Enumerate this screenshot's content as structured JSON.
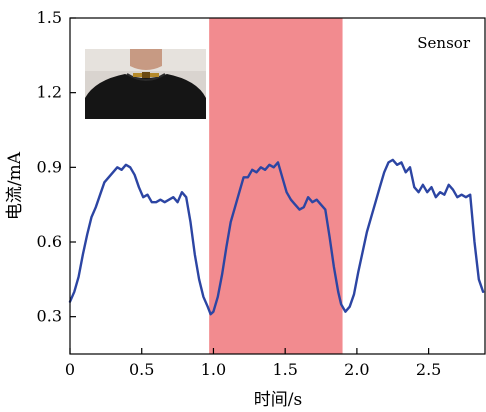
{
  "chart_data": {
    "type": "line",
    "xlabel": "时间/s",
    "ylabel": "电流/mA",
    "xlim": [
      0,
      2.9
    ],
    "ylim": [
      0.15,
      1.5
    ],
    "xticks": [
      0,
      0.5,
      1.0,
      1.5,
      2.0,
      2.5
    ],
    "xtick_labels": [
      "0",
      "0.5",
      "1.0",
      "1.5",
      "2.0",
      "2.5"
    ],
    "yticks": [
      0.3,
      0.6,
      0.9,
      1.2,
      1.5
    ],
    "ytick_labels": [
      "0.3",
      "0.6",
      "0.9",
      "1.2",
      "1.5"
    ],
    "legend_text": "Sensor",
    "legend_position": "top-right",
    "grid": false,
    "inset_photo": "neck-wearing-sensor-photo",
    "highlight_region": {
      "x0": 0.97,
      "x1": 1.9,
      "color": "#f28b8f"
    },
    "series": [
      {
        "color": "#2c45a3",
        "x": [
          0.0,
          0.03,
          0.06,
          0.09,
          0.12,
          0.15,
          0.18,
          0.21,
          0.24,
          0.27,
          0.3,
          0.33,
          0.36,
          0.39,
          0.42,
          0.45,
          0.48,
          0.51,
          0.54,
          0.57,
          0.6,
          0.63,
          0.66,
          0.69,
          0.72,
          0.75,
          0.78,
          0.81,
          0.84,
          0.87,
          0.9,
          0.93,
          0.96,
          0.98,
          1.0,
          1.03,
          1.06,
          1.09,
          1.12,
          1.15,
          1.18,
          1.21,
          1.24,
          1.27,
          1.3,
          1.33,
          1.36,
          1.39,
          1.42,
          1.45,
          1.48,
          1.51,
          1.54,
          1.57,
          1.6,
          1.63,
          1.66,
          1.69,
          1.72,
          1.75,
          1.78,
          1.81,
          1.84,
          1.87,
          1.89,
          1.92,
          1.95,
          1.98,
          2.01,
          2.04,
          2.07,
          2.1,
          2.13,
          2.16,
          2.19,
          2.22,
          2.25,
          2.28,
          2.31,
          2.34,
          2.37,
          2.4,
          2.43,
          2.46,
          2.49,
          2.52,
          2.55,
          2.58,
          2.61,
          2.64,
          2.67,
          2.7,
          2.73,
          2.76,
          2.79,
          2.82,
          2.85,
          2.88
        ],
        "y": [
          0.36,
          0.4,
          0.46,
          0.55,
          0.63,
          0.7,
          0.74,
          0.79,
          0.84,
          0.86,
          0.88,
          0.9,
          0.89,
          0.91,
          0.9,
          0.87,
          0.82,
          0.78,
          0.79,
          0.76,
          0.76,
          0.77,
          0.76,
          0.77,
          0.78,
          0.76,
          0.8,
          0.78,
          0.68,
          0.55,
          0.45,
          0.38,
          0.34,
          0.31,
          0.32,
          0.38,
          0.47,
          0.58,
          0.68,
          0.74,
          0.8,
          0.86,
          0.86,
          0.89,
          0.88,
          0.9,
          0.89,
          0.91,
          0.9,
          0.92,
          0.86,
          0.8,
          0.77,
          0.75,
          0.73,
          0.74,
          0.78,
          0.76,
          0.77,
          0.75,
          0.73,
          0.62,
          0.5,
          0.4,
          0.35,
          0.32,
          0.34,
          0.39,
          0.48,
          0.56,
          0.64,
          0.7,
          0.76,
          0.82,
          0.88,
          0.92,
          0.93,
          0.91,
          0.92,
          0.88,
          0.9,
          0.82,
          0.8,
          0.83,
          0.8,
          0.82,
          0.78,
          0.8,
          0.79,
          0.83,
          0.81,
          0.78,
          0.79,
          0.78,
          0.79,
          0.6,
          0.45,
          0.4
        ]
      }
    ]
  }
}
